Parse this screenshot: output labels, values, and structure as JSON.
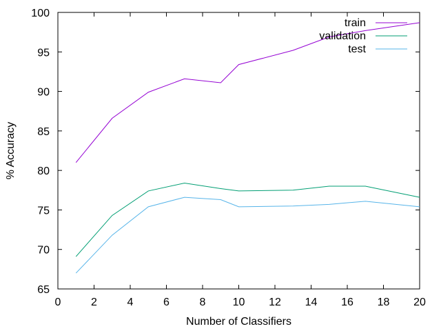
{
  "chart_data": {
    "type": "line",
    "title": "",
    "xlabel": "Number of Classifiers",
    "ylabel": "% Accuracy",
    "xlim": [
      0,
      20
    ],
    "ylim": [
      65,
      100
    ],
    "xticks": [
      0,
      2,
      4,
      6,
      8,
      10,
      12,
      14,
      16,
      18,
      20
    ],
    "yticks": [
      65,
      70,
      75,
      80,
      85,
      90,
      95,
      100
    ],
    "grid": false,
    "legend_position": "top-right",
    "series": [
      {
        "name": "train",
        "color": "#9400d3",
        "x": [
          1,
          3,
          5,
          7,
          9,
          10,
          13,
          15,
          17,
          20
        ],
        "y": [
          81.0,
          86.6,
          89.9,
          91.6,
          91.1,
          93.4,
          95.2,
          96.9,
          97.7,
          98.7
        ]
      },
      {
        "name": "validation",
        "color": "#009e73",
        "x": [
          1,
          3,
          5,
          7,
          9,
          10,
          13,
          15,
          17,
          20
        ],
        "y": [
          69.1,
          74.3,
          77.4,
          78.4,
          77.7,
          77.4,
          77.5,
          78.0,
          78.0,
          76.6
        ]
      },
      {
        "name": "test",
        "color": "#56b4e9",
        "x": [
          1,
          3,
          5,
          7,
          9,
          10,
          13,
          15,
          17,
          20
        ],
        "y": [
          67.0,
          71.8,
          75.4,
          76.6,
          76.3,
          75.4,
          75.5,
          75.7,
          76.1,
          75.4
        ]
      }
    ]
  }
}
